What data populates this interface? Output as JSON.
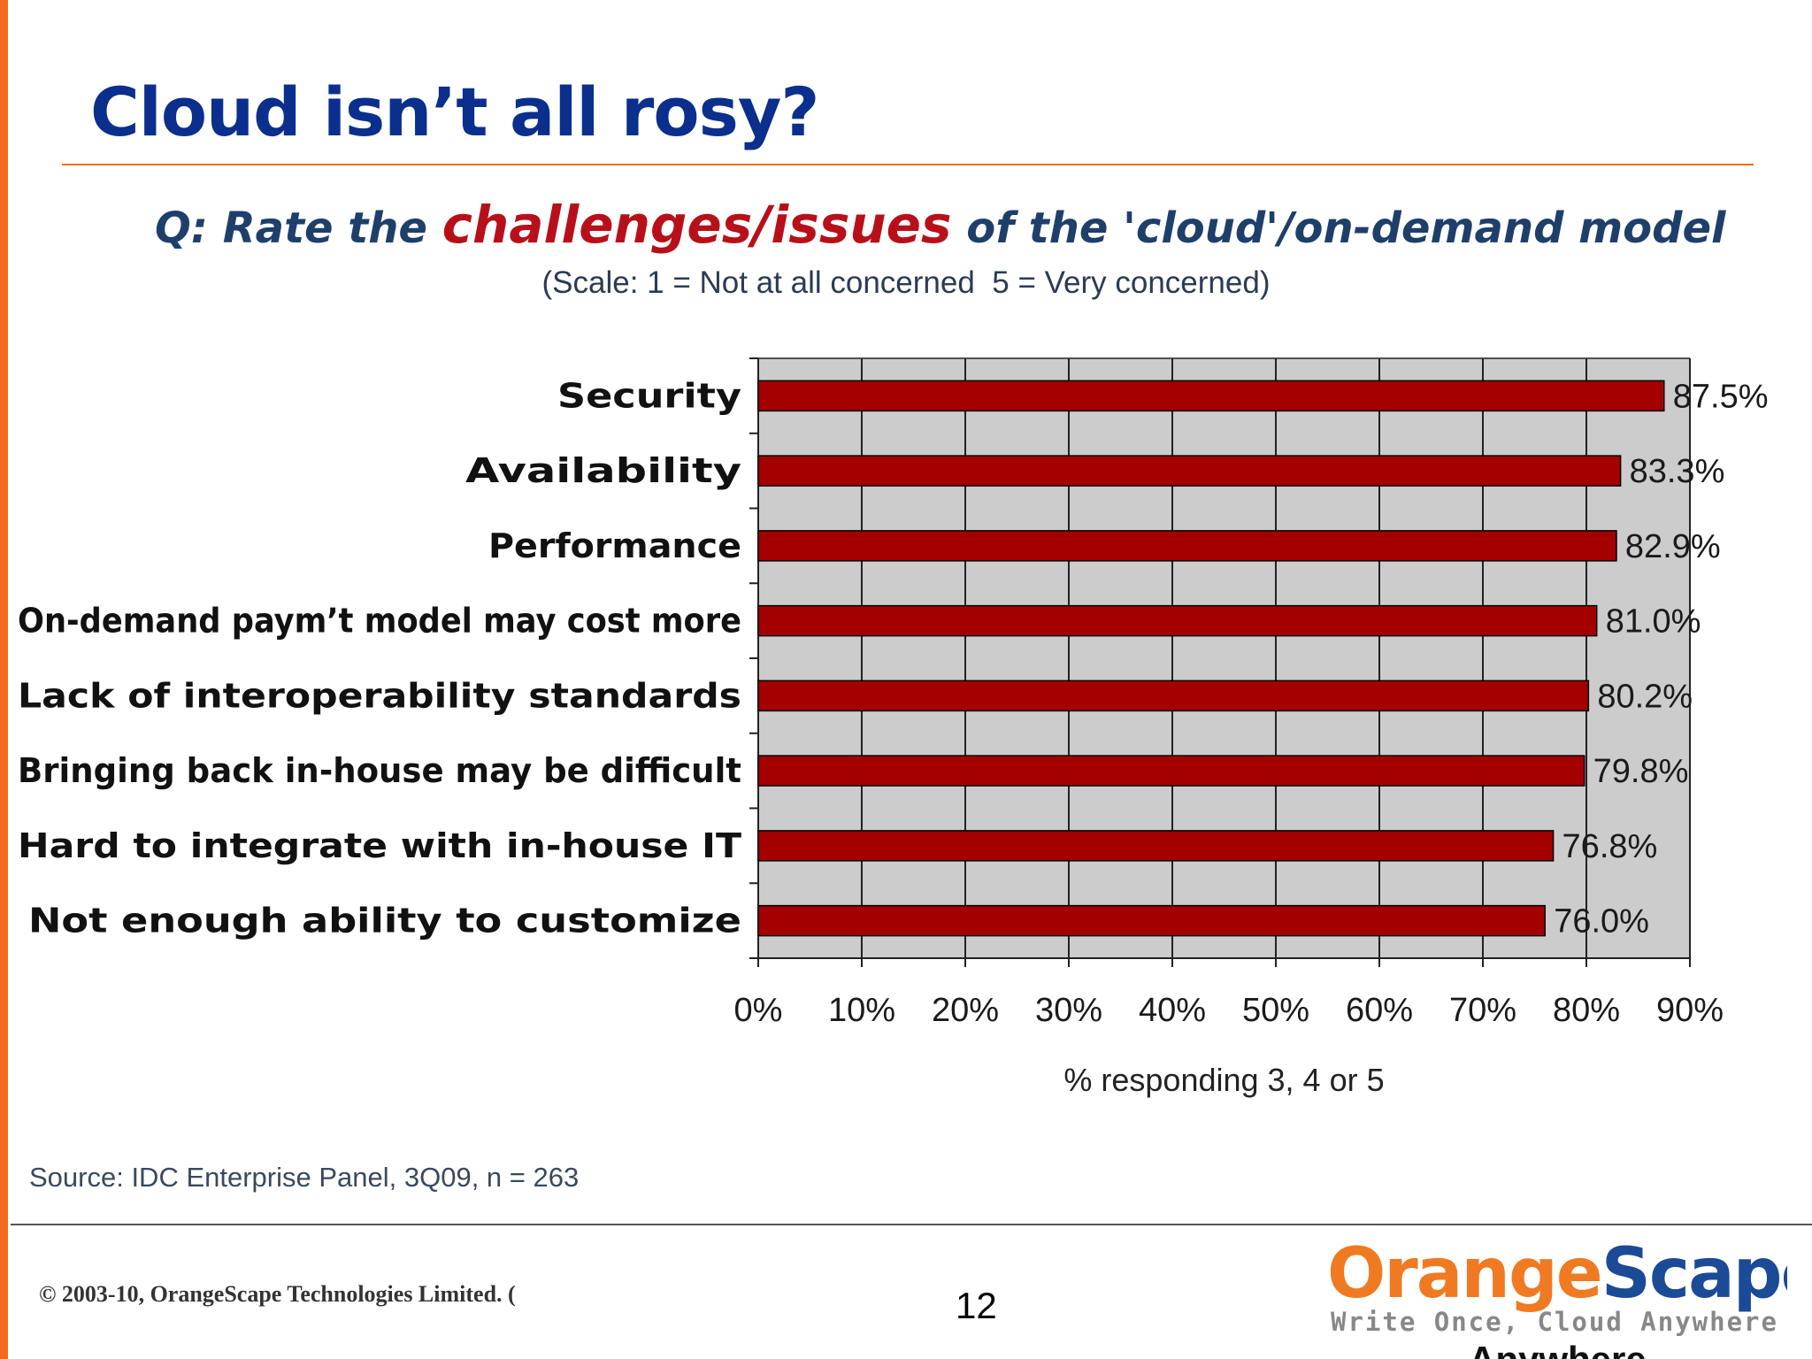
{
  "slide": {
    "title": "Cloud isn’t all rosy?",
    "question_pre": "Q: Rate the ",
    "question_em": "challenges/issues",
    "question_post": " of the 'cloud'/on-demand model",
    "scale_note": "(Scale: 1 = Not at all concerned  5 = Very concerned)",
    "source": "Source: IDC Enterprise Panel, 3Q09, n = 263",
    "copyright": "© 2003-10, OrangeScape Technologies Limited. (",
    "page_number": "12",
    "logo_orange": "Orange",
    "logo_scape": "Scape",
    "logo_tagline": "Write Once, Cloud Anywhere",
    "logo_overflow_text": "Anywhere."
  },
  "colors": {
    "accent_orange": "#f26b1d",
    "title_blue": "#0a2f8c",
    "bar_red": "#a50000",
    "plot_bg": "#cccccc"
  },
  "chart_data": {
    "type": "bar",
    "orientation": "horizontal",
    "categories": [
      "Security",
      "Availability",
      "Performance",
      "On-demand paym’t model may cost more",
      "Lack of interoperability standards",
      "Bringing back in-house may be difficult",
      "Hard to integrate with in-house IT",
      "Not enough ability to customize"
    ],
    "values": [
      87.5,
      83.3,
      82.9,
      81.0,
      80.2,
      79.8,
      76.8,
      76.0
    ],
    "value_labels": [
      "87.5%",
      "83.3%",
      "82.9%",
      "81.0%",
      "80.2%",
      "79.8%",
      "76.8%",
      "76.0%"
    ],
    "xlim": [
      0,
      90
    ],
    "xticks": [
      0,
      10,
      20,
      30,
      40,
      50,
      60,
      70,
      80,
      90
    ],
    "xtick_labels": [
      "0%",
      "10%",
      "20%",
      "30%",
      "40%",
      "50%",
      "60%",
      "70%",
      "80%",
      "90%"
    ],
    "xlabel": "% responding 3, 4 or 5",
    "ylabel": "",
    "grid": "vertical",
    "legend": "none"
  }
}
